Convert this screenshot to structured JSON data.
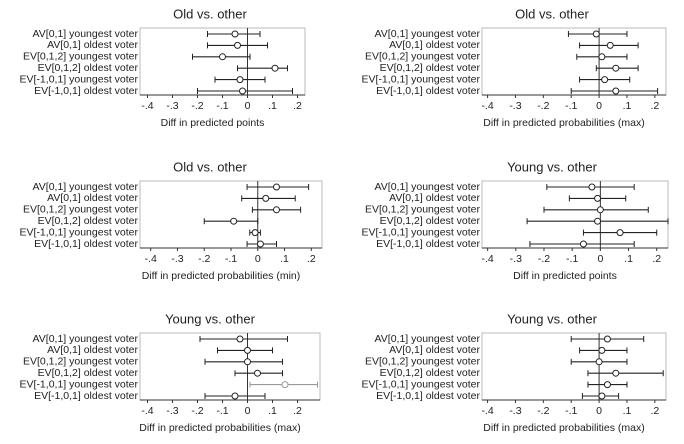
{
  "chart_data": [
    {
      "type": "errorbar",
      "title": "Old vs. other",
      "xlabel": "Diff in predicted points",
      "categories": [
        "AV[0,1] youngest voter",
        "AV[0,1] oldest voter",
        "EV[0,1,2] youngest voter",
        "EV[0,1,2] oldest voter",
        "EV[-1,0,1] youngest voter",
        "EV[-1,0,1] oldest voter"
      ],
      "values": [
        -0.05,
        -0.04,
        -0.1,
        0.11,
        -0.03,
        -0.02
      ],
      "lower": [
        -0.16,
        -0.16,
        -0.22,
        -0.04,
        -0.13,
        -0.2
      ],
      "upper": [
        0.05,
        0.08,
        0.01,
        0.16,
        0.07,
        0.18
      ],
      "colors": [
        "#222",
        "#222",
        "#222",
        "#222",
        "#222",
        "#222"
      ],
      "reference_line": 0,
      "xlim": [
        -0.43,
        0.23
      ],
      "xticks": [
        {
          "value": -0.4,
          "label": "-.4"
        },
        {
          "value": -0.3,
          "label": "-.3"
        },
        {
          "value": -0.2,
          "label": "-.2"
        },
        {
          "value": -0.1,
          "label": "-.1"
        },
        0,
        {
          "value": 0.1,
          "label": ".1"
        },
        {
          "value": 0.2,
          "label": ".2"
        }
      ]
    },
    {
      "type": "errorbar",
      "title": "Old vs. other",
      "xlabel": "Diff in predicted probabilities (max)",
      "categories": [
        "AV[0,1] youngest voter",
        "AV[0,1] oldest voter",
        "EV[0,1,2] youngest voter",
        "EV[0,1,2] oldest voter",
        "EV[-1,0,1] youngest voter",
        "EV[-1,0,1] oldest voter"
      ],
      "values": [
        -0.01,
        0.04,
        0.01,
        0.06,
        0.02,
        0.06
      ],
      "lower": [
        -0.11,
        -0.07,
        -0.08,
        -0.01,
        -0.07,
        -0.1
      ],
      "upper": [
        0.1,
        0.14,
        0.1,
        0.14,
        0.11,
        0.21
      ],
      "colors": [
        "#222",
        "#222",
        "#222",
        "#222",
        "#222",
        "#222"
      ],
      "reference_line": 0,
      "xlim": [
        -0.42,
        0.24
      ],
      "xticks": [
        {
          "value": -0.4,
          "label": "-.4"
        },
        {
          "value": -0.3,
          "label": "-.3"
        },
        {
          "value": -0.2,
          "label": "-.2"
        },
        {
          "value": -0.1,
          "label": "-.1"
        },
        0,
        {
          "value": 0.1,
          "label": ".1"
        },
        {
          "value": 0.2,
          "label": ".2"
        }
      ]
    },
    {
      "type": "errorbar",
      "title": "Old vs. other",
      "xlabel": "Diff in predicted probabilities (min)",
      "categories": [
        "AV[0,1] youngest voter",
        "AV[0,1] oldest voter",
        "EV[0,1,2] youngest voter",
        "EV[0,1,2] oldest voter",
        "EV[-1,0,1] youngest voter",
        "EV[-1,0,1] oldest voter"
      ],
      "values": [
        0.07,
        0.03,
        0.07,
        -0.09,
        -0.01,
        0.01
      ],
      "lower": [
        -0.04,
        -0.06,
        -0.02,
        -0.2,
        -0.03,
        -0.04
      ],
      "upper": [
        0.19,
        0.14,
        0.16,
        0,
        0.01,
        0.07
      ],
      "colors": [
        "#222",
        "#222",
        "#222",
        "#222",
        "#222",
        "#222"
      ],
      "reference_line": 0,
      "xlim": [
        -0.44,
        0.24
      ],
      "xticks": [
        {
          "value": -0.4,
          "label": "-.4"
        },
        {
          "value": -0.3,
          "label": "-.3"
        },
        {
          "value": -0.2,
          "label": "-.2"
        },
        {
          "value": -0.1,
          "label": "-.1"
        },
        0,
        {
          "value": 0.1,
          "label": ".1"
        },
        {
          "value": 0.2,
          "label": ".2"
        }
      ]
    },
    {
      "type": "errorbar",
      "title": "Young vs. other",
      "xlabel": "Diff in predicted points",
      "categories": [
        "AV[0,1] youngest voter",
        "AV[0,1] oldest voter",
        "EV[0,1,2] youngest voter",
        "EV[0,1,2] oldest voter",
        "EV[-1,0,1] youngest voter",
        "EV[-1,0,1] oldest voter"
      ],
      "values": [
        -0.03,
        -0.01,
        0,
        -0.01,
        0.07,
        -0.06
      ],
      "lower": [
        -0.19,
        -0.11,
        -0.2,
        -0.26,
        -0.06,
        -0.25
      ],
      "upper": [
        0.12,
        0.09,
        0.17,
        0.24,
        0.2,
        0.12
      ],
      "colors": [
        "#222",
        "#222",
        "#222",
        "#222",
        "#222",
        "#222"
      ],
      "reference_line": 0,
      "xlim": [
        -0.42,
        0.24
      ],
      "xticks": [
        {
          "value": -0.4,
          "label": "-.4"
        },
        {
          "value": -0.3,
          "label": "-.3"
        },
        {
          "value": -0.2,
          "label": "-.2"
        },
        {
          "value": -0.1,
          "label": "-.1"
        },
        0,
        {
          "value": 0.1,
          "label": ".1"
        },
        {
          "value": 0.2,
          "label": ".2"
        }
      ]
    },
    {
      "type": "errorbar",
      "title": "Young vs. other",
      "xlabel": "Diff in predicted probabilities (max)",
      "categories": [
        "AV[0,1] youngest voter",
        "AV[0,1] oldest voter",
        "EV[0,1,2] youngest voter",
        "EV[0,1,2] oldest voter",
        "EV[-1,0,1] youngest voter",
        "EV[-1,0,1] oldest voter"
      ],
      "values": [
        -0.03,
        0,
        0,
        0.04,
        0.15,
        -0.05
      ],
      "lower": [
        -0.19,
        -0.12,
        -0.17,
        -0.05,
        0.01,
        -0.17
      ],
      "upper": [
        0.16,
        0.1,
        0.14,
        0.14,
        0.28,
        0.07
      ],
      "colors": [
        "#222",
        "#222",
        "#222",
        "#222",
        "#999",
        "#222"
      ],
      "reference_line": 0,
      "xlim": [
        -0.43,
        0.29
      ],
      "xticks": [
        {
          "value": -0.4,
          "label": "-.4"
        },
        {
          "value": -0.3,
          "label": "-.3"
        },
        {
          "value": -0.2,
          "label": "-.2"
        },
        {
          "value": -0.1,
          "label": "-.1"
        },
        0,
        {
          "value": 0.1,
          "label": ".1"
        },
        {
          "value": 0.2,
          "label": ".2"
        }
      ]
    },
    {
      "type": "errorbar",
      "title": "Young vs. other",
      "xlabel": "Diff in predicted probabilities (max)",
      "categories": [
        "AV[0,1] youngest voter",
        "AV[0,1] oldest voter",
        "EV[0,1,2] youngest voter",
        "EV[0,1,2] oldest voter",
        "EV[-1,0,1] youngest voter",
        "EV[-1,0,1] oldest voter"
      ],
      "values": [
        0.03,
        0.01,
        0,
        0.06,
        0.03,
        0.01
      ],
      "lower": [
        -0.1,
        -0.07,
        -0.1,
        -0.04,
        -0.04,
        -0.06
      ],
      "upper": [
        0.16,
        0.1,
        0.1,
        0.23,
        0.1,
        0.07
      ],
      "colors": [
        "#222",
        "#222",
        "#222",
        "#222",
        "#222",
        "#222"
      ],
      "reference_line": 0,
      "xlim": [
        -0.42,
        0.24
      ],
      "xticks": [
        {
          "value": -0.4,
          "label": "-.4"
        },
        {
          "value": -0.3,
          "label": "-.3"
        },
        {
          "value": -0.2,
          "label": "-.2"
        },
        {
          "value": -0.1,
          "label": "-.1"
        },
        0,
        {
          "value": 0.1,
          "label": ".1"
        },
        {
          "value": 0.2,
          "label": ".2"
        }
      ]
    }
  ]
}
